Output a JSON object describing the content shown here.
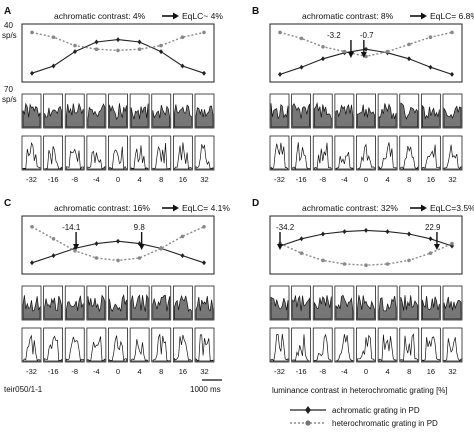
{
  "figure": {
    "scale_top_value": "40",
    "scale_top_unit": "sp/s",
    "scale_mid_value": "70",
    "scale_mid_unit": "sp/s",
    "cell_id": "teir050/1-1",
    "time_scale_label": "1000 ms",
    "xaxis_label": "luminance contrast in heterochromatic grating [%]",
    "legend": [
      {
        "label": "achromatic grating in PD",
        "color": "#222222",
        "style": "solid",
        "marker": "diamond"
      },
      {
        "label": "heterochromatic grating in PD",
        "color": "#777777",
        "style": "dotted",
        "marker": "circle"
      }
    ],
    "tick_labels": [
      "-32",
      "-16",
      "-8",
      "-4",
      "0",
      "4",
      "8",
      "16",
      "32"
    ],
    "colors": {
      "line": "#222222",
      "dotted": "#888888",
      "fill": "#777777"
    }
  },
  "panels": [
    {
      "letter": "A",
      "contrast_label": "achromatic contrast: 4%",
      "eqlc_label": "EqLC~ 4%",
      "annotations": []
    },
    {
      "letter": "B",
      "contrast_label": "achromatic contrast: 8%",
      "eqlc_label": "EqLC= 6.8%",
      "annotations": [
        "-3.2",
        "-0.7"
      ]
    },
    {
      "letter": "C",
      "contrast_label": "achromatic contrast: 16%",
      "eqlc_label": "EqLC= 4.1%",
      "annotations": [
        "-14.1",
        "9.8"
      ]
    },
    {
      "letter": "D",
      "contrast_label": "achromatic contrast: 32%",
      "eqlc_label": "EqLC=3.5%",
      "annotations": [
        "-34.2",
        "22.9"
      ]
    }
  ],
  "chart_data": [
    {
      "type": "line",
      "panel": "A",
      "x": [
        "-32",
        "-16",
        "-8",
        "-4",
        "0",
        "4",
        "8",
        "16",
        "32"
      ],
      "series": [
        {
          "name": "achromatic grating in PD",
          "values": [
            4,
            10,
            22,
            30,
            32,
            30,
            22,
            10,
            4
          ]
        },
        {
          "name": "heterochromatic grating in PD",
          "values": [
            38,
            34,
            27,
            24,
            23,
            24,
            27,
            34,
            38
          ]
        }
      ]
    },
    {
      "type": "line",
      "panel": "B",
      "x": [
        "-32",
        "-16",
        "-8",
        "-4",
        "0",
        "4",
        "8",
        "16",
        "32"
      ],
      "series": [
        {
          "name": "achromatic grating in PD",
          "values": [
            3,
            9,
            16,
            21,
            24,
            21,
            16,
            9,
            3
          ]
        },
        {
          "name": "heterochromatic grating in PD",
          "values": [
            38,
            33,
            26,
            22,
            18,
            22,
            28,
            34,
            38
          ]
        }
      ]
    },
    {
      "type": "line",
      "panel": "C",
      "x": [
        "-32",
        "-16",
        "-8",
        "-4",
        "0",
        "4",
        "8",
        "16",
        "32"
      ],
      "series": [
        {
          "name": "achromatic grating in PD",
          "values": [
            6,
            12,
            18,
            22,
            24,
            22,
            18,
            12,
            6
          ]
        },
        {
          "name": "heterochromatic grating in PD",
          "values": [
            36,
            26,
            16,
            10,
            8,
            10,
            18,
            28,
            36
          ]
        }
      ]
    },
    {
      "type": "line",
      "panel": "D",
      "x": [
        "-32",
        "-16",
        "-8",
        "-4",
        "0",
        "4",
        "8",
        "16",
        "32"
      ],
      "series": [
        {
          "name": "achromatic grating in PD",
          "values": [
            20,
            26,
            30,
            32,
            33,
            32,
            30,
            26,
            20
          ]
        },
        {
          "name": "heterochromatic grating in PD",
          "values": [
            22,
            14,
            8,
            5,
            4,
            5,
            8,
            14,
            22
          ]
        }
      ]
    }
  ]
}
